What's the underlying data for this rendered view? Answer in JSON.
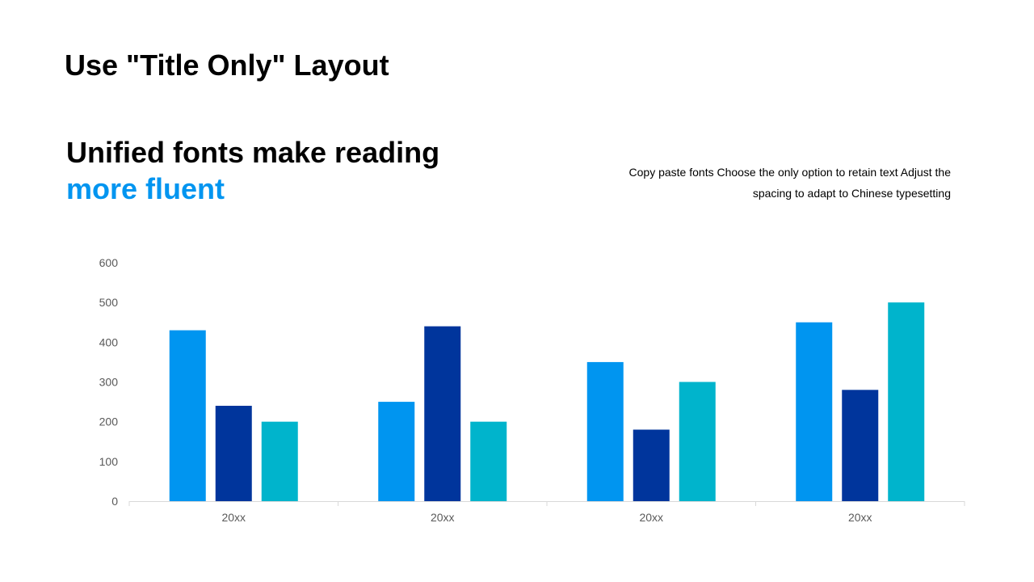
{
  "slide": {
    "title": "Use \"Title Only\" Layout",
    "headline_line1": "Unified fonts make reading",
    "headline_line2": "more fluent",
    "description": "Copy paste fonts Choose the only option to retain text Adjust the spacing to adapt to Chinese typesetting"
  },
  "colors": {
    "accent": "#0095f0",
    "axis_text": "#595959",
    "axis_line": "#d9d9d9"
  },
  "chart_data": {
    "type": "bar",
    "categories": [
      "20xx",
      "20xx",
      "20xx",
      "20xx"
    ],
    "series": [
      {
        "values": [
          430,
          250,
          350,
          450
        ],
        "color": "#0095f0"
      },
      {
        "values": [
          240,
          440,
          180,
          280
        ],
        "color": "#00359c"
      },
      {
        "values": [
          200,
          200,
          300,
          500
        ],
        "color": "#00b4cc"
      }
    ],
    "ylim": [
      0,
      600
    ],
    "yticks": [
      0,
      100,
      200,
      300,
      400,
      500,
      600
    ],
    "grid": false,
    "legend": "none",
    "title": "",
    "xlabel": "",
    "ylabel": ""
  }
}
